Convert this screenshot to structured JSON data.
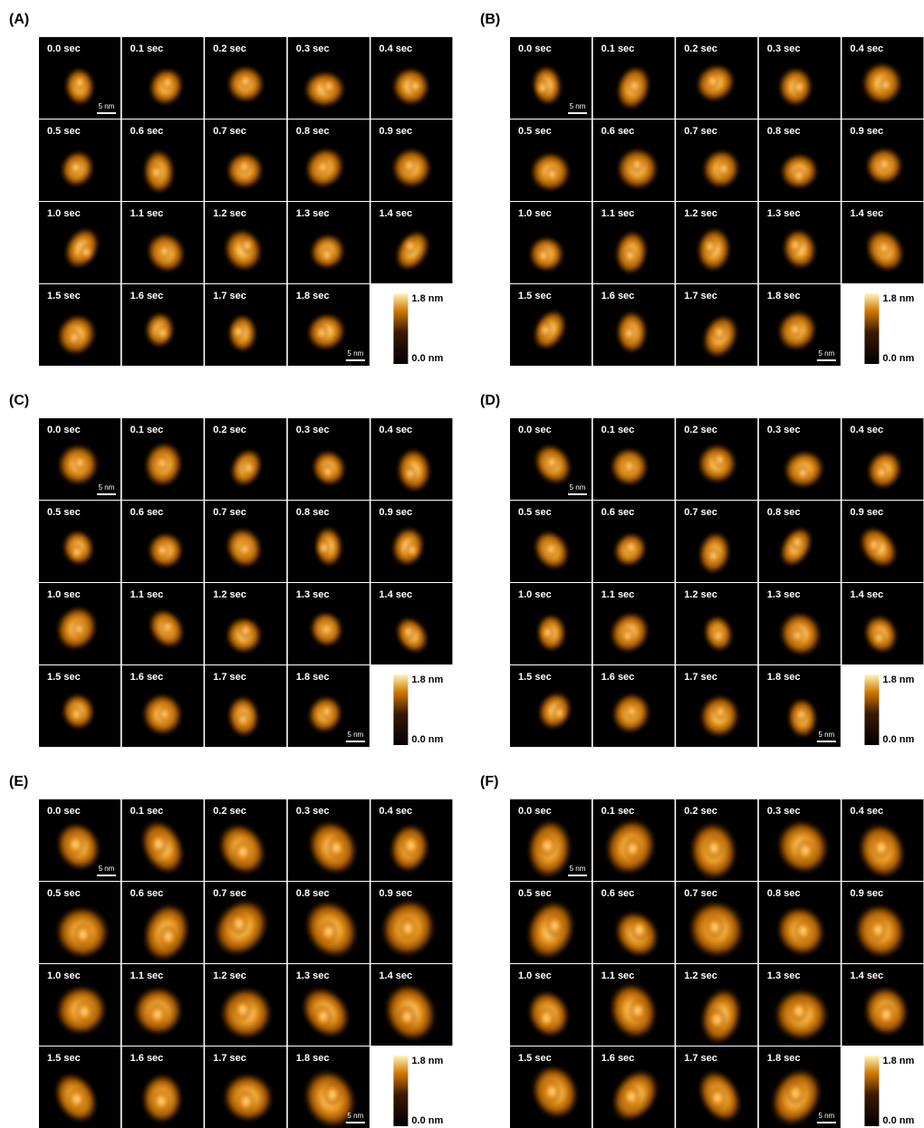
{
  "panels": [
    {
      "label": "(A)",
      "frames": [
        "0.0 sec",
        "0.1 sec",
        "0.2 sec",
        "0.3 sec",
        "0.4 sec",
        "0.5 sec",
        "0.6 sec",
        "0.7 sec",
        "0.8 sec",
        "0.9 sec",
        "1.0 sec",
        "1.1 sec",
        "1.2 sec",
        "1.3 sec",
        "1.4 sec",
        "1.5 sec",
        "1.6 sec",
        "1.7 sec",
        "1.8 sec"
      ],
      "scale_bar": "5 nm",
      "colorbar_max": "1.8 nm",
      "colorbar_min": "0.0 nm"
    },
    {
      "label": "(B)",
      "frames": [
        "0.0 sec",
        "0.1 sec",
        "0.2 sec",
        "0.3 sec",
        "0.4 sec",
        "0.5 sec",
        "0.6 sec",
        "0.7 sec",
        "0.8 sec",
        "0.9 sec",
        "1.0 sec",
        "1.1 sec",
        "1.2 sec",
        "1.3 sec",
        "1.4 sec",
        "1.5 sec",
        "1.6 sec",
        "1.7 sec",
        "1.8 sec"
      ],
      "scale_bar": "5 nm",
      "colorbar_max": "1.8 nm",
      "colorbar_min": "0.0 nm"
    },
    {
      "label": "(C)",
      "frames": [
        "0.0 sec",
        "0.1 sec",
        "0.2 sec",
        "0.3 sec",
        "0.4 sec",
        "0.5 sec",
        "0.6 sec",
        "0.7 sec",
        "0.8 sec",
        "0.9 sec",
        "1.0 sec",
        "1.1 sec",
        "1.2 sec",
        "1.3 sec",
        "1.4 sec",
        "1.5 sec",
        "1.6 sec",
        "1.7 sec",
        "1.8 sec"
      ],
      "scale_bar": "5 nm",
      "colorbar_max": "1.8 nm",
      "colorbar_min": "0.0 nm"
    },
    {
      "label": "(D)",
      "frames": [
        "0.0 sec",
        "0.1 sec",
        "0.2 sec",
        "0.3 sec",
        "0.4 sec",
        "0.5 sec",
        "0.6 sec",
        "0.7 sec",
        "0.8 sec",
        "0.9 sec",
        "1.0 sec",
        "1.1 sec",
        "1.2 sec",
        "1.3 sec",
        "1.4 sec",
        "1.5 sec",
        "1.6 sec",
        "1.7 sec",
        "1.8 sec"
      ],
      "scale_bar": "5 nm",
      "colorbar_max": "1.8 nm",
      "colorbar_min": "0.0 nm"
    },
    {
      "label": "(E)",
      "frames": [
        "0.0 sec",
        "0.1 sec",
        "0.2 sec",
        "0.3 sec",
        "0.4 sec",
        "0.5 sec",
        "0.6 sec",
        "0.7 sec",
        "0.8 sec",
        "0.9 sec",
        "1.0 sec",
        "1.1 sec",
        "1.2 sec",
        "1.3 sec",
        "1.4 sec",
        "1.5 sec",
        "1.6 sec",
        "1.7 sec",
        "1.8 sec"
      ],
      "scale_bar": "5 nm",
      "colorbar_max": "1.8 nm",
      "colorbar_min": "0.0 nm"
    },
    {
      "label": "(F)",
      "frames": [
        "0.0 sec",
        "0.1 sec",
        "0.2 sec",
        "0.3 sec",
        "0.4 sec",
        "0.5 sec",
        "0.6 sec",
        "0.7 sec",
        "0.8 sec",
        "0.9 sec",
        "1.0 sec",
        "1.1 sec",
        "1.2 sec",
        "1.3 sec",
        "1.4 sec",
        "1.5 sec",
        "1.6 sec",
        "1.7 sec",
        "1.8 sec"
      ],
      "scale_bar": "5 nm",
      "colorbar_max": "1.8 nm",
      "colorbar_min": "0.0 nm"
    }
  ]
}
